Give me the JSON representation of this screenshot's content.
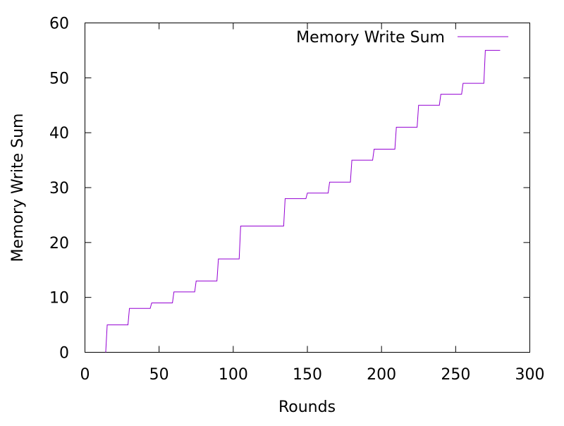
{
  "chart_data": {
    "type": "line",
    "title": "",
    "xlabel": "Rounds",
    "ylabel": "Memory Write Sum",
    "xlim": [
      0,
      300
    ],
    "ylim": [
      0,
      60
    ],
    "x_ticks": [
      0,
      50,
      100,
      150,
      200,
      250,
      300
    ],
    "y_ticks": [
      0,
      10,
      20,
      30,
      40,
      50,
      60
    ],
    "x_tick_labels": [
      "0",
      "50",
      "100",
      "150",
      "200",
      "250",
      "300"
    ],
    "y_tick_labels": [
      "0",
      "10",
      "20",
      "30",
      "40",
      "50",
      "60"
    ],
    "grid": false,
    "legend_position": "top-right",
    "step": true,
    "series": [
      {
        "name": "Memory Write Sum",
        "color": "#9400d3",
        "points": [
          [
            14,
            0
          ],
          [
            15,
            5
          ],
          [
            29,
            5
          ],
          [
            30,
            8
          ],
          [
            44,
            8
          ],
          [
            45,
            9
          ],
          [
            59,
            9
          ],
          [
            60,
            11
          ],
          [
            74,
            11
          ],
          [
            75,
            13
          ],
          [
            89,
            13
          ],
          [
            90,
            17
          ],
          [
            104,
            17
          ],
          [
            105,
            23
          ],
          [
            134,
            23
          ],
          [
            135,
            28
          ],
          [
            149,
            28
          ],
          [
            150,
            29
          ],
          [
            164,
            29
          ],
          [
            165,
            31
          ],
          [
            179,
            31
          ],
          [
            180,
            35
          ],
          [
            194,
            35
          ],
          [
            195,
            37
          ],
          [
            209,
            37
          ],
          [
            210,
            41
          ],
          [
            224,
            41
          ],
          [
            225,
            45
          ],
          [
            239,
            45
          ],
          [
            240,
            47
          ],
          [
            254,
            47
          ],
          [
            255,
            49
          ],
          [
            269,
            49
          ],
          [
            270,
            55
          ],
          [
            280,
            55
          ]
        ]
      }
    ]
  }
}
